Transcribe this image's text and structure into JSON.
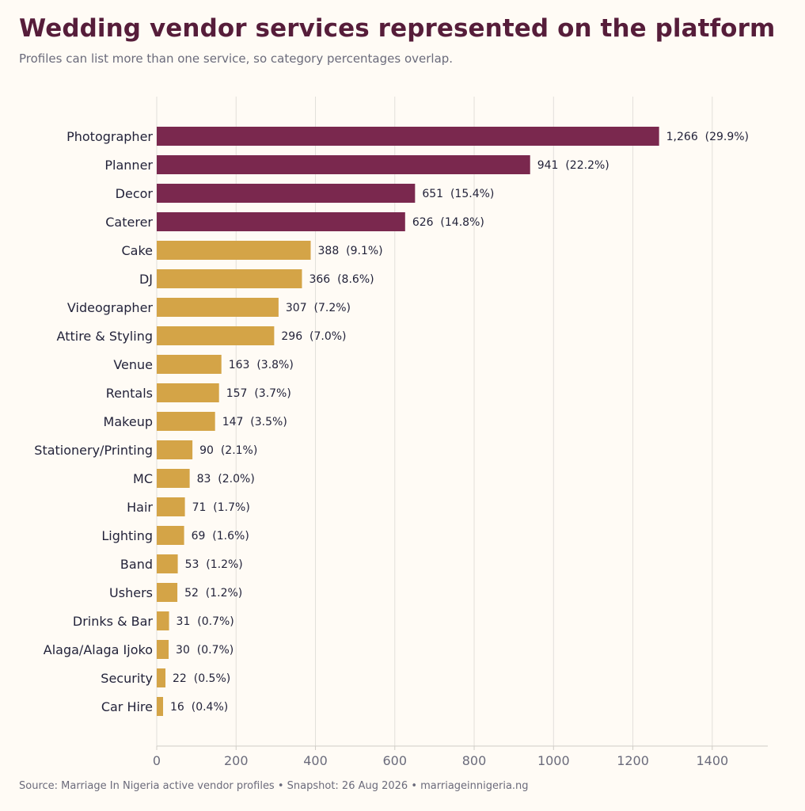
{
  "chart_data": {
    "type": "bar",
    "orientation": "horizontal",
    "title": "Wedding vendor services represented on the platform",
    "subtitle": "Profiles can list more than one service, so category percentages overlap.",
    "source": "Source: Marriage In Nigeria active vendor profiles  •  Snapshot: 26 Aug 2026  •  marriageinnigeria.ng",
    "categories": [
      "Photographer",
      "Planner",
      "Decor",
      "Caterer",
      "Cake",
      "DJ",
      "Videographer",
      "Attire & Styling",
      "Venue",
      "Rentals",
      "Makeup",
      "Stationery/Printing",
      "MC",
      "Hair",
      "Lighting",
      "Band",
      "Ushers",
      "Drinks & Bar",
      "Alaga/Alaga Ijoko",
      "Security",
      "Car Hire"
    ],
    "values": [
      1266,
      941,
      651,
      626,
      388,
      366,
      307,
      296,
      163,
      157,
      147,
      90,
      83,
      71,
      69,
      53,
      52,
      31,
      30,
      22,
      16
    ],
    "value_labels": [
      "1,266  (29.9%)",
      "941  (22.2%)",
      "651  (15.4%)",
      "626  (14.8%)",
      "388  (9.1%)",
      "366  (8.6%)",
      "307  (7.2%)",
      "296  (7.0%)",
      "163  (3.8%)",
      "157  (3.7%)",
      "147  (3.5%)",
      "90  (2.1%)",
      "83  (2.0%)",
      "71  (1.7%)",
      "69  (1.6%)",
      "53  (1.2%)",
      "52  (1.2%)",
      "31  (0.7%)",
      "30  (0.7%)",
      "22  (0.5%)",
      "16  (0.4%)"
    ],
    "highlight_count": 4,
    "colors": {
      "highlight": "#7a284e",
      "default": "#d4a447",
      "grid": "#e2dfda",
      "axis": "#cfccc6"
    },
    "xlim": [
      0,
      1540
    ],
    "xticks": [
      0,
      200,
      400,
      600,
      800,
      1000,
      1200,
      1400
    ],
    "grid": "vertical",
    "legend": "none"
  }
}
